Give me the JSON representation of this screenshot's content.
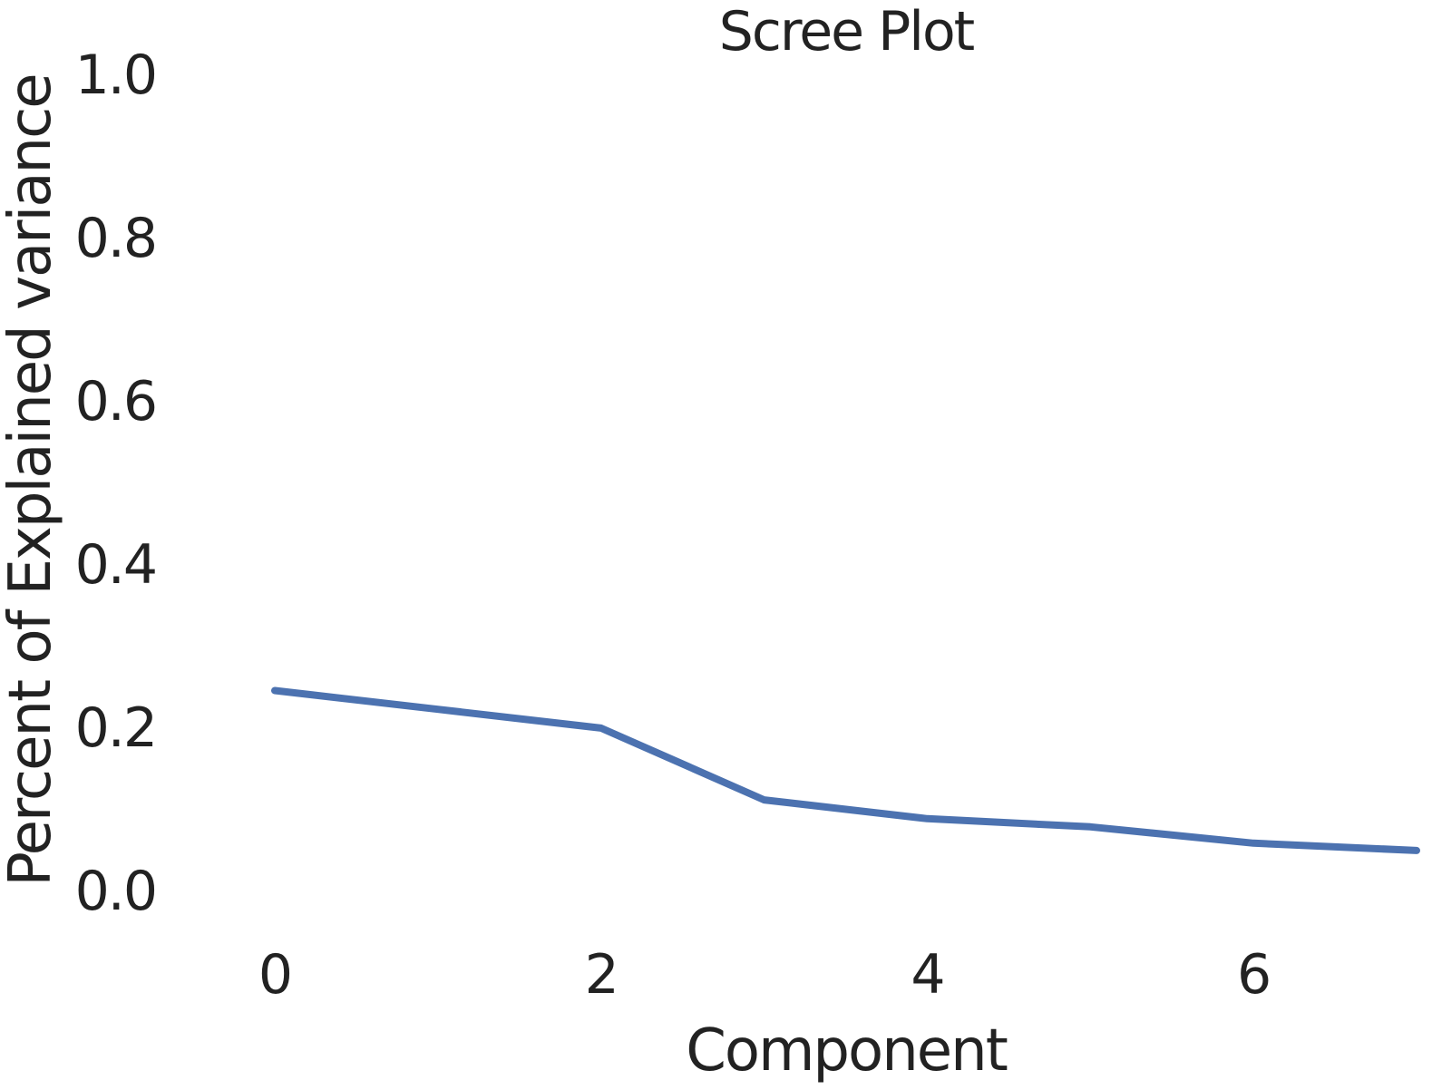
{
  "chart_data": {
    "type": "line",
    "title": "Scree Plot",
    "xlabel": "Component",
    "ylabel": "Percent of Explained variance",
    "x": [
      0,
      1,
      2,
      3,
      4,
      5,
      6,
      7
    ],
    "series": [
      {
        "values": [
          0.245,
          0.222,
          0.199,
          0.111,
          0.088,
          0.078,
          0.058,
          0.049
        ],
        "color": "#4c72b0"
      }
    ],
    "x_ticks": [
      "0",
      "2",
      "4",
      "6"
    ],
    "y_ticks": [
      "0.0",
      "0.2",
      "0.4",
      "0.6",
      "0.8",
      "1.0"
    ],
    "xlim": [
      0,
      7
    ],
    "ylim": [
      0,
      1.0
    ],
    "grid": false,
    "legend": "none"
  }
}
